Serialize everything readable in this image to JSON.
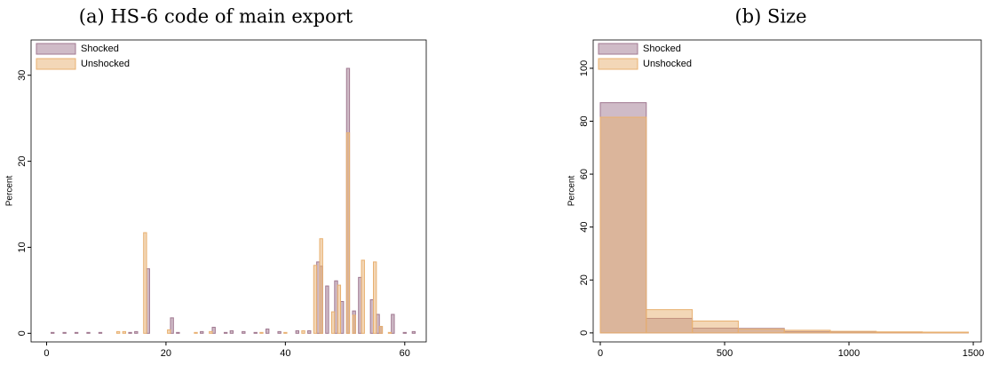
{
  "chart_data": [
    {
      "type": "bar",
      "title": "(a) HS-6 code of main export",
      "y_label": "Percent",
      "xlim": [
        -2.6,
        63.6
      ],
      "ylim": [
        -1.0,
        34.1
      ],
      "xticks": [
        0,
        20,
        40,
        60
      ],
      "yticks": [
        0,
        10,
        20,
        30
      ],
      "bar_width": 0.5,
      "legend": "top-left",
      "series": [
        {
          "name": "Shocked",
          "color": "#a07890",
          "x": [
            1,
            3,
            5,
            7,
            9,
            14,
            15,
            17,
            21,
            22,
            26,
            28,
            30,
            31,
            33,
            35,
            37,
            39,
            42,
            44,
            45.5,
            46,
            47,
            48.5,
            49.5,
            50.5,
            51.5,
            52.5,
            54.5,
            55.5,
            56,
            58,
            60,
            61.5
          ],
          "values": [
            0.1,
            0.1,
            0.1,
            0.1,
            0.1,
            0.1,
            0.2,
            7.5,
            1.8,
            0.1,
            0.2,
            0.7,
            0.1,
            0.3,
            0.2,
            0.1,
            0.5,
            0.2,
            0.3,
            0.3,
            8.3,
            7.8,
            5.5,
            6.1,
            3.7,
            30.8,
            2.6,
            6.5,
            3.9,
            2.2,
            0.8,
            2.2,
            0.1,
            0.2
          ]
        },
        {
          "name": "Unshocked",
          "color": "#e8b070",
          "x": [
            12,
            13,
            16.5,
            20.5,
            25,
            27.5,
            36,
            40,
            43,
            45,
            46,
            48,
            49,
            50.5,
            51.5,
            53,
            55,
            56,
            57.5
          ],
          "values": [
            0.2,
            0.2,
            11.7,
            0.4,
            0.1,
            0.2,
            0.1,
            0.1,
            0.3,
            7.9,
            11.0,
            2.5,
            5.6,
            23.3,
            2.1,
            8.5,
            8.3,
            0.8,
            0.1
          ]
        }
      ]
    },
    {
      "type": "histogram",
      "title": "(b) Size",
      "y_label": "Percent",
      "xlim": [
        -28.6,
        1532
      ],
      "ylim": [
        -3.4,
        110.7
      ],
      "xticks": [
        0,
        500,
        1000,
        1500
      ],
      "yticks": [
        0,
        20,
        40,
        60,
        80,
        100
      ],
      "legend": "top-left",
      "bins": [
        0,
        185,
        370,
        555,
        740,
        925,
        1110,
        1295,
        1480
      ],
      "series": [
        {
          "name": "Shocked",
          "color": "#a07890",
          "values": [
            87,
            5.5,
            1.8,
            1.7,
            0.5,
            0.4,
            0.2,
            0.2
          ]
        },
        {
          "name": "Unshocked",
          "color": "#e8b070",
          "values": [
            81.5,
            8.8,
            4.5,
            1.5,
            1.0,
            0.6,
            0.4,
            0.3
          ]
        }
      ]
    }
  ]
}
